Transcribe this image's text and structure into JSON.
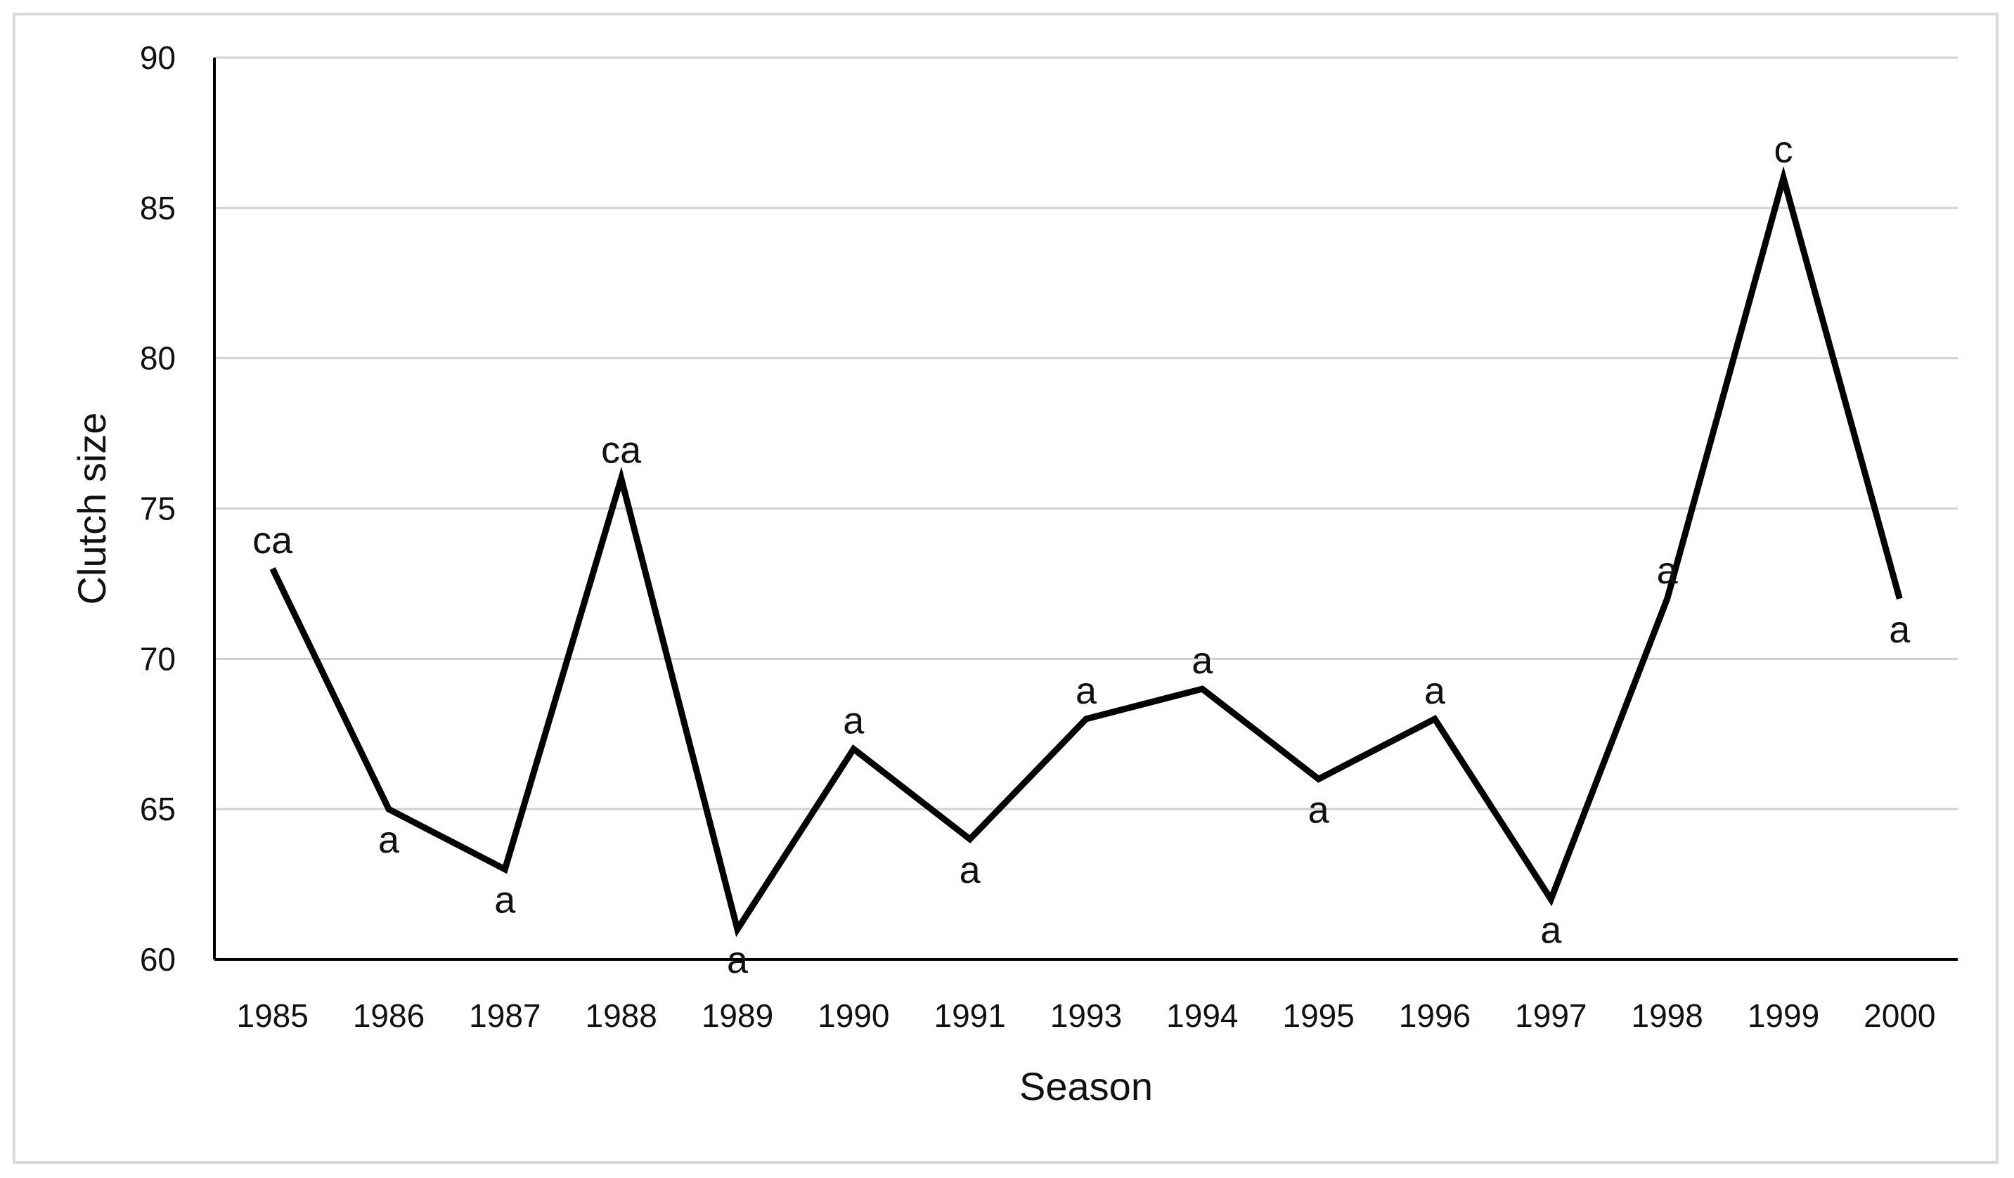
{
  "chart_data": {
    "type": "line",
    "xlabel": "Season",
    "ylabel": "Clutch size",
    "categories": [
      "1985",
      "1986",
      "1987",
      "1988",
      "1989",
      "1990",
      "1991",
      "1993",
      "1994",
      "1995",
      "1996",
      "1997",
      "1998",
      "1999",
      "2000"
    ],
    "values": [
      73,
      65,
      63,
      76,
      61,
      67,
      64,
      68,
      69,
      66,
      68,
      62,
      72,
      86,
      72
    ],
    "point_labels": [
      "ca",
      "a",
      "a",
      "ca",
      "a",
      "a",
      "a",
      "a",
      "a",
      "a",
      "a",
      "a",
      "a",
      "c",
      "a"
    ],
    "ylim": [
      60,
      90
    ],
    "yticks": [
      60,
      65,
      70,
      75,
      80,
      85,
      90
    ],
    "grid": true,
    "line_color": "#000000"
  }
}
